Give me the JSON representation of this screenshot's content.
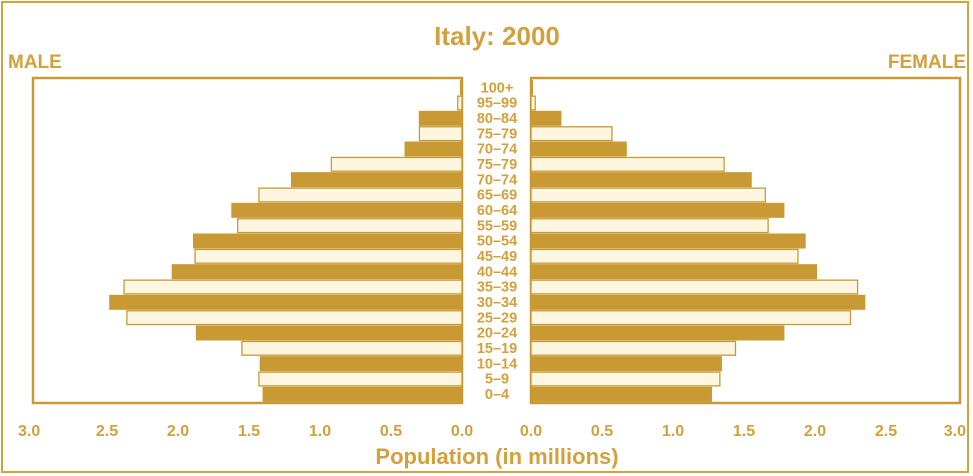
{
  "chart_data": {
    "type": "bar",
    "orientation": "horizontal-population-pyramid",
    "title": "Italy: 2000",
    "left_label": "MALE",
    "right_label": "FEMALE",
    "xlabel": "Population (in millions)",
    "xlim": [
      0,
      3.0
    ],
    "x_ticks": [
      "0.0",
      "0.5",
      "1.0",
      "1.5",
      "2.0",
      "2.5",
      "3.0"
    ],
    "categories": [
      "0–4",
      "5–9",
      "10–14",
      "15–19",
      "20–24",
      "25–29",
      "30–34",
      "35–39",
      "40–44",
      "45–49",
      "50–54",
      "55–59",
      "60–64",
      "65–69",
      "70–74",
      "75–79",
      "70–74",
      "75–79",
      "80–84",
      "95–99",
      "100+"
    ],
    "series": [
      {
        "name": "MALE",
        "values": [
          1.4,
          1.43,
          1.42,
          1.55,
          1.87,
          2.36,
          2.48,
          2.38,
          2.04,
          1.88,
          1.89,
          1.58,
          1.62,
          1.43,
          1.2,
          0.92,
          0.4,
          0.3,
          0.3,
          0.03,
          0.01
        ]
      },
      {
        "name": "FEMALE",
        "values": [
          1.27,
          1.33,
          1.34,
          1.44,
          1.78,
          2.25,
          2.35,
          2.3,
          2.01,
          1.88,
          1.93,
          1.67,
          1.78,
          1.65,
          1.55,
          1.36,
          0.67,
          0.57,
          0.21,
          0.03,
          0.01
        ]
      }
    ],
    "band_fills": [
      "#c99a34",
      "#fdf6e1"
    ],
    "accent_color": "#d3a03c",
    "grid": false,
    "legend": "none"
  }
}
